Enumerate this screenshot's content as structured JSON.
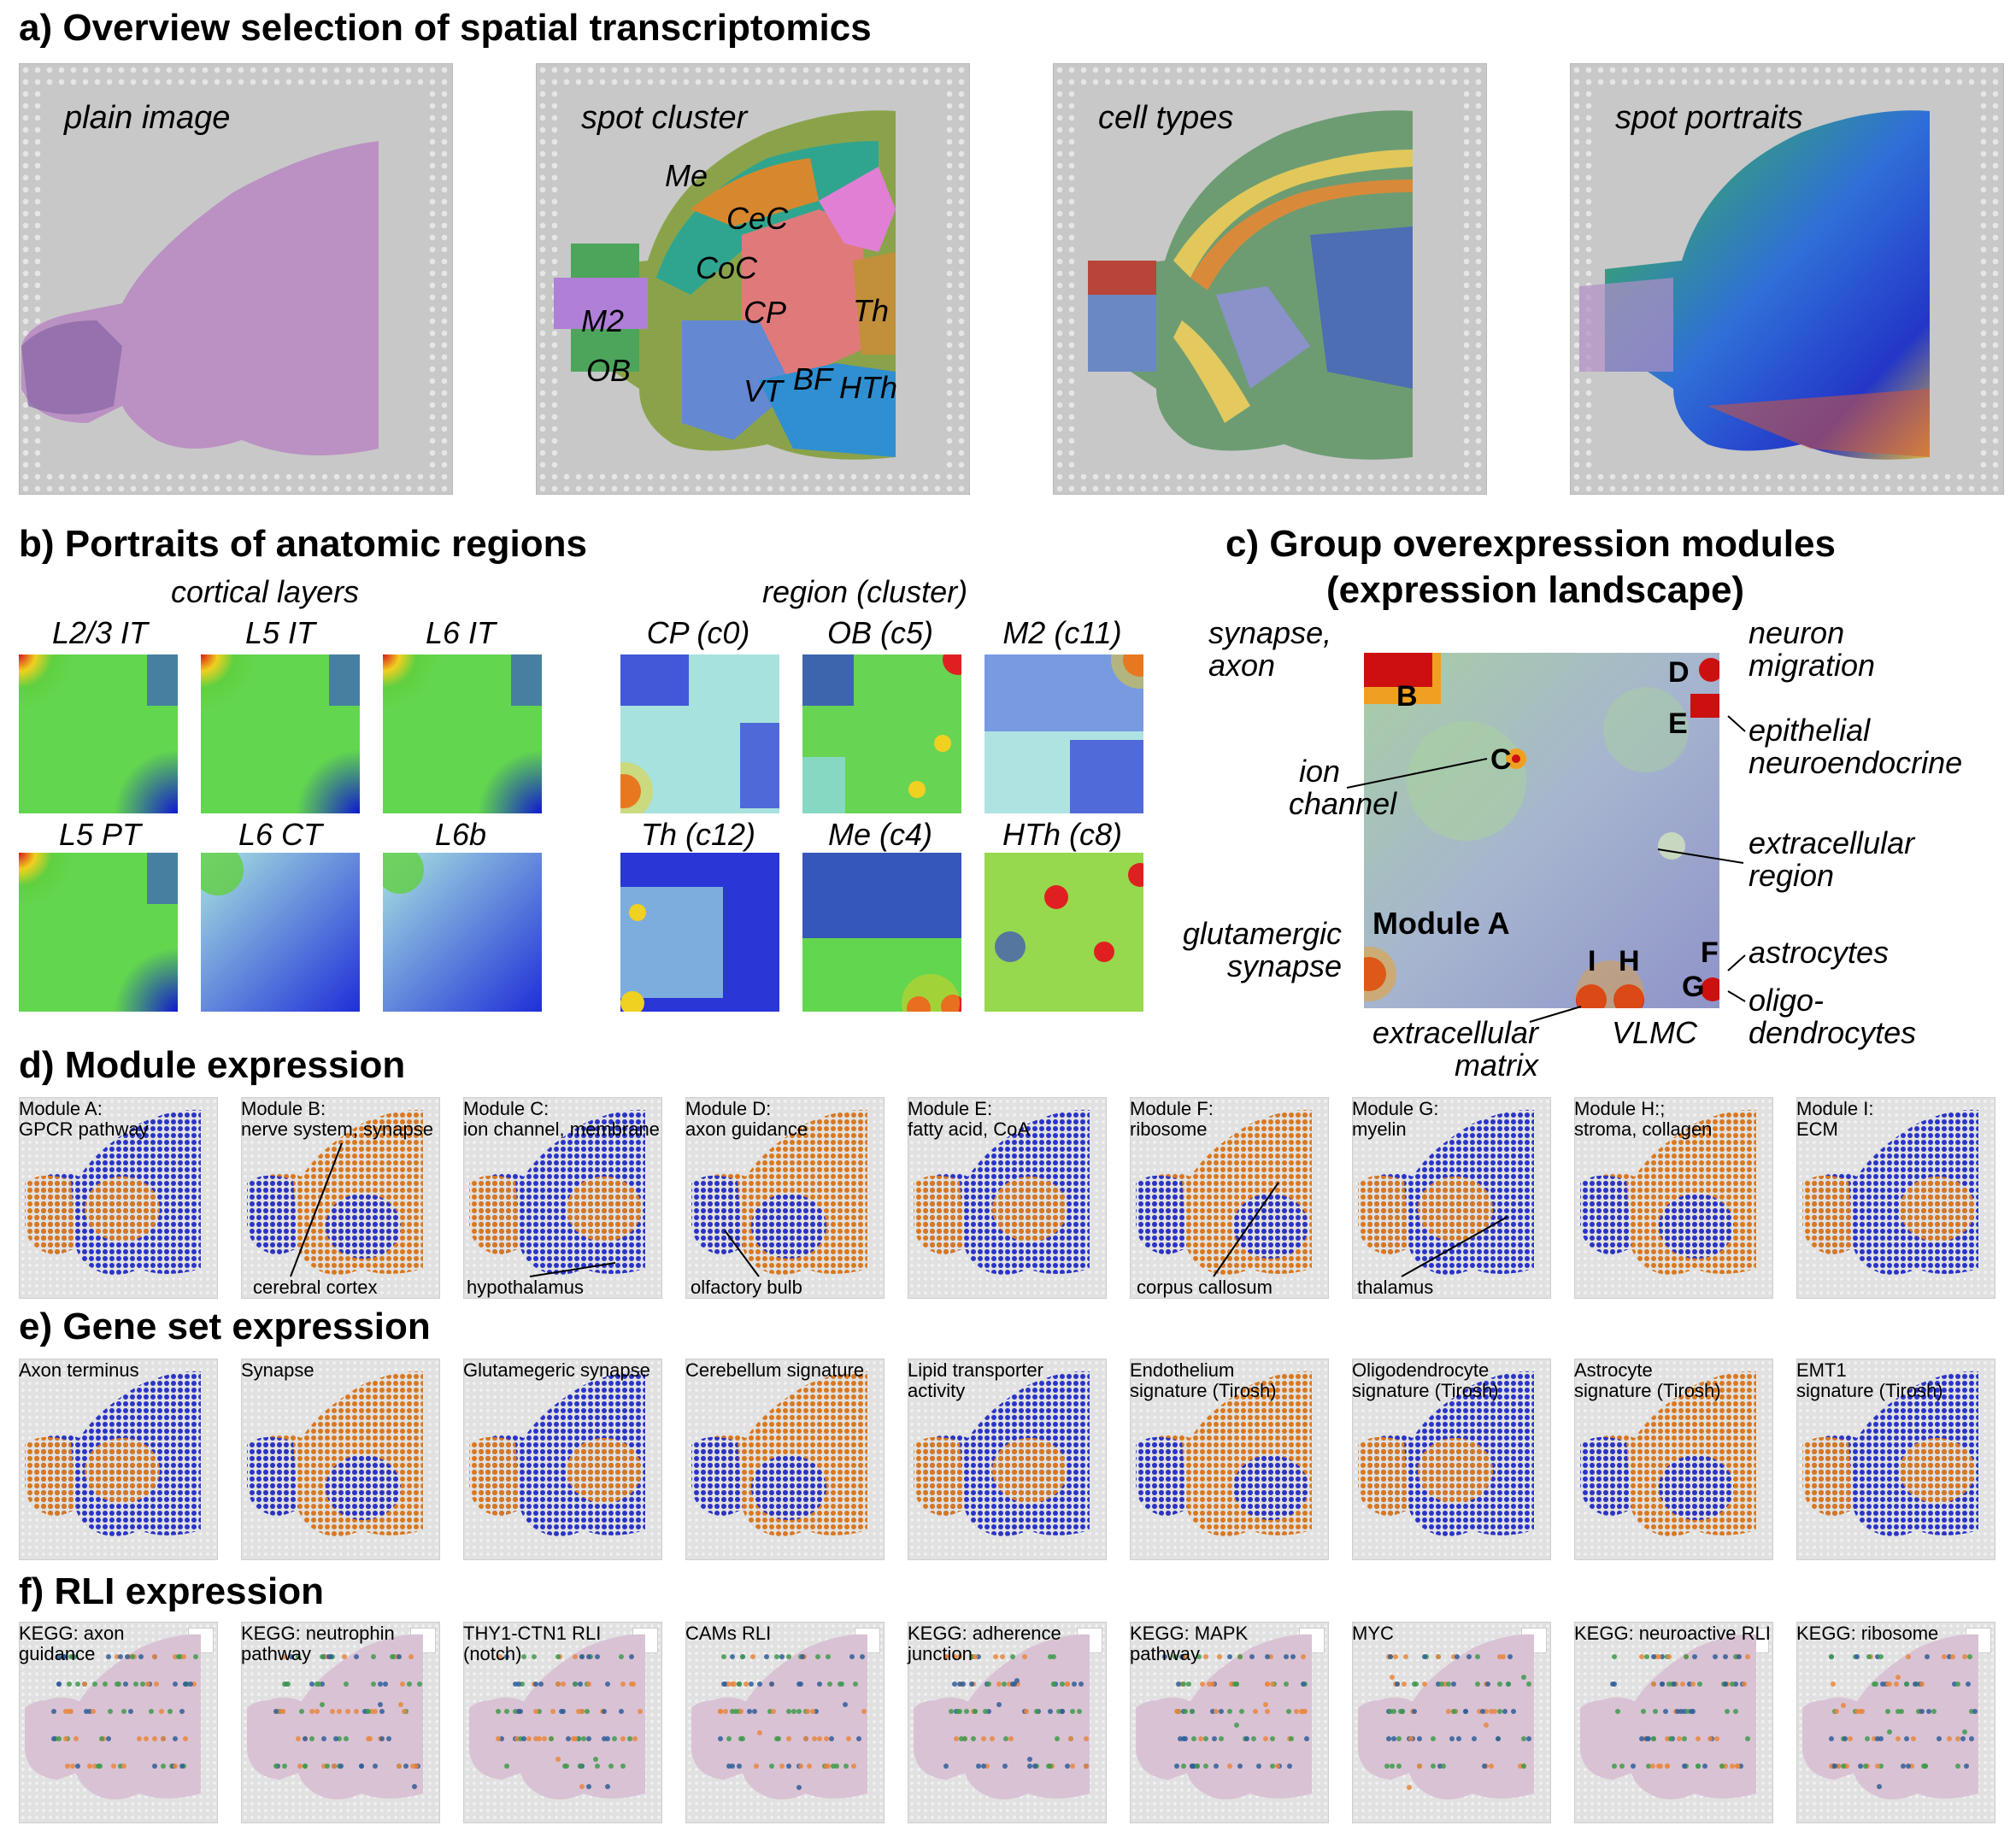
{
  "sections": {
    "a": "a) Overview selection of spatial transcriptomics",
    "b": "b) Portraits of anatomic regions",
    "c_line1": "c) Group overexpression modules",
    "c_line2": "(expression landscape)",
    "d": "d) Module expression",
    "e": "e) Gene set expression",
    "f": "f) RLI expression"
  },
  "panel_a": {
    "titles": [
      "plain image",
      "spot cluster",
      "cell types",
      "spot portraits"
    ],
    "regions": [
      "Me",
      "CeC",
      "CoC",
      "CP",
      "Th",
      "M2",
      "OB",
      "VT",
      "BF",
      "HTh"
    ]
  },
  "panel_b": {
    "group_cortical": "cortical layers",
    "group_region": "region (cluster)",
    "cortical": [
      "L2/3 IT",
      "L5 IT",
      "L6 IT",
      "L5 PT",
      "L6 CT",
      "L6b"
    ],
    "regions": [
      "CP (c0)",
      "OB (c5)",
      "M2 (c11)",
      "Th (c12)",
      "Me (c4)",
      "HTh (c8)"
    ]
  },
  "panel_c": {
    "letters": [
      "B",
      "C",
      "D",
      "E",
      "F",
      "G",
      "H",
      "I"
    ],
    "module_a": "Module A",
    "labels": {
      "synapse_axon": [
        "synapse,",
        "axon"
      ],
      "neuron_migration": [
        "neuron",
        "migration"
      ],
      "epithelial": [
        "epithelial",
        "neuroendocrine"
      ],
      "ion_channel": [
        "ion",
        "channel"
      ],
      "extracellular_region": [
        "extracellular",
        "region"
      ],
      "glutamergic": [
        "glutamergic",
        "synapse"
      ],
      "astrocytes": "astrocytes",
      "oligo": [
        "oligo-",
        "dendrocytes"
      ],
      "ecm": [
        "extracellular",
        "matrix"
      ],
      "vlmc": "VLMC"
    }
  },
  "panel_d": {
    "items": [
      [
        "Module A:",
        "GPCR pathway"
      ],
      [
        "Module B:",
        "nerve system, synapse"
      ],
      [
        "Module C:",
        "ion channel, membrane"
      ],
      [
        "Module D:",
        "axon guidance"
      ],
      [
        "Module E:",
        "fatty acid, CoA"
      ],
      [
        "Module F:",
        "ribosome"
      ],
      [
        "Module G:",
        "myelin"
      ],
      [
        "Module H:;",
        "stroma, collagen"
      ],
      [
        "Module I:",
        "ECM"
      ]
    ],
    "annotations": [
      "cerebral cortex",
      "hypothalamus",
      "olfactory bulb",
      "corpus callosum",
      "thalamus"
    ]
  },
  "panel_e": {
    "items": [
      [
        "Axon terminus",
        ""
      ],
      [
        "Synapse",
        ""
      ],
      [
        "Glutamegeric synapse",
        ""
      ],
      [
        "Cerebellum signature",
        ""
      ],
      [
        "Lipid transporter",
        "activity"
      ],
      [
        "Endothelium",
        "signature (Tirosh)"
      ],
      [
        "Oligodendrocyte",
        "signature (Tirosh)"
      ],
      [
        "Astrocyte",
        "signature (Tirosh)"
      ],
      [
        "EMT1",
        "signature (Tirosh)"
      ]
    ]
  },
  "panel_f": {
    "items": [
      [
        "KEGG: axon",
        "guidance"
      ],
      [
        "KEGG: neutrophin",
        "pathway"
      ],
      [
        "THY1-CTN1 RLI",
        "(notch)"
      ],
      [
        "CAMs RLI",
        ""
      ],
      [
        "KEGG: adherence",
        "junction"
      ],
      [
        "KEGG: MAPK",
        "pathway"
      ],
      [
        "MYC",
        ""
      ],
      [
        "KEGG: neuroactive RLI",
        ""
      ],
      [
        "KEGG: ribosome",
        ""
      ]
    ]
  },
  "colors": {
    "he_tissue": "#b98ec2",
    "module_blue": "#2a34c8",
    "module_orange": "#d9781f",
    "rli_pink": "#d9c2d4",
    "rli_green": "#3f9a4c",
    "rli_blue": "#2f5e99",
    "rli_orange": "#e8873f"
  }
}
